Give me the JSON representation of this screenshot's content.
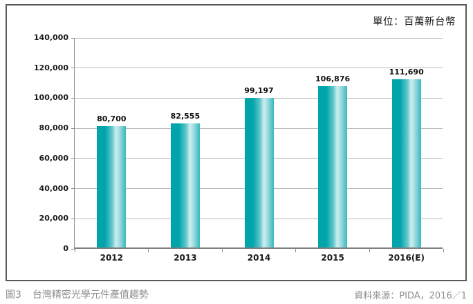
{
  "unit_label": "單位：百萬新台幣",
  "caption": {
    "figure_no": "圖3",
    "title": "台灣精密光學元件產值趨勢"
  },
  "source_label": "資料來源：PIDA，2016／1",
  "colors": {
    "bar_edge_teal": "#00a4ab",
    "bar_mid_light": "#cfeef0",
    "bar_right_teal": "#38b8be",
    "gridline": "#b8b8b8",
    "axis": "#7f7f81",
    "frame_border": "#59595b",
    "caption_gray": "#8d8d8d"
  },
  "chart_data": {
    "type": "bar",
    "title": "台灣精密光學元件產值趨勢",
    "unit": "百萬新台幣",
    "categories": [
      "2012",
      "2013",
      "2014",
      "2015",
      "2016(E)"
    ],
    "values": [
      80700,
      82555,
      99197,
      106876,
      111690
    ],
    "value_labels": [
      "80,700",
      "82,555",
      "99,197",
      "106,876",
      "111,690"
    ],
    "xlabel": "",
    "ylabel": "",
    "ylim": [
      0,
      140000
    ],
    "ytick_interval": 20000,
    "ytick_labels": [
      "0",
      "20,000",
      "40,000",
      "60,000",
      "80,000",
      "100,000",
      "120,000",
      "140,000"
    ],
    "grid": "horizontal",
    "legend_position": "none"
  }
}
